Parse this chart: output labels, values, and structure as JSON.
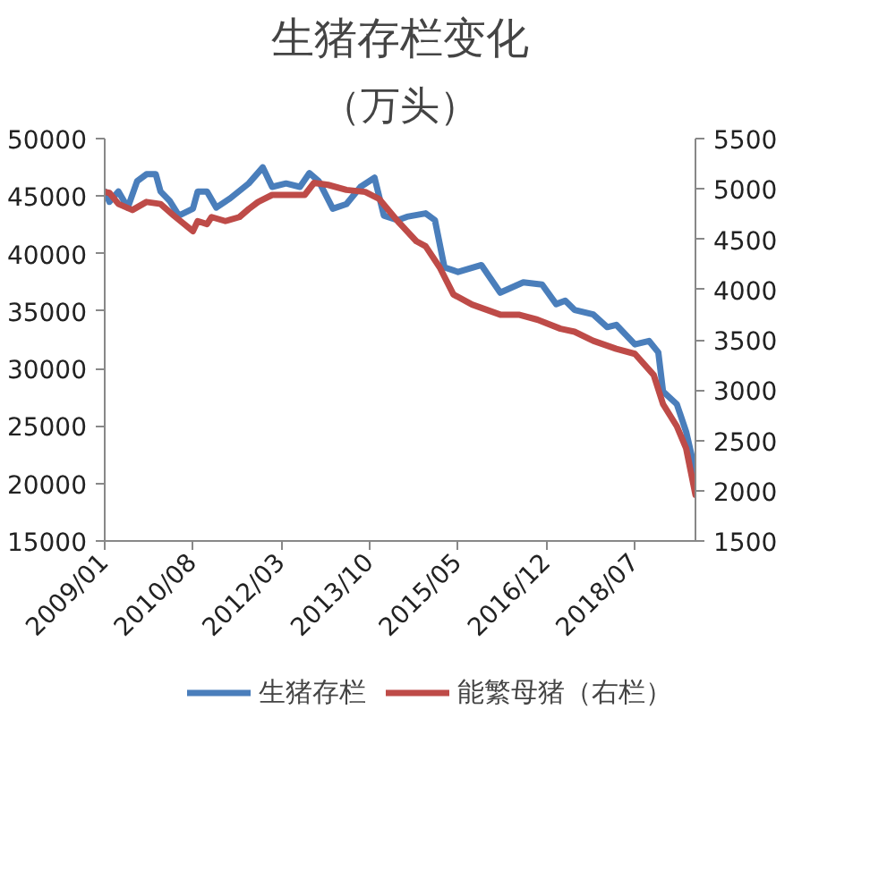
{
  "chart_data": {
    "type": "line",
    "title": "生猪存栏变化",
    "subtitle": "（万头）",
    "xlim": [
      "2009-01",
      "2019-08"
    ],
    "xticks": [
      {
        "value": "2009-01",
        "label": "2009/01"
      },
      {
        "value": "2010-08",
        "label": "2010/08"
      },
      {
        "value": "2012-03",
        "label": "2012/03"
      },
      {
        "value": "2013-10",
        "label": "2013/10"
      },
      {
        "value": "2015-05",
        "label": "2015/05"
      },
      {
        "value": "2016-12",
        "label": "2016/12"
      },
      {
        "value": "2018-07",
        "label": "2018/07"
      }
    ],
    "ylim": [
      15000,
      50000
    ],
    "yticks": [
      15000,
      20000,
      25000,
      30000,
      35000,
      40000,
      45000,
      50000
    ],
    "y2lim": [
      1500,
      5500
    ],
    "y2ticks": [
      1500,
      2000,
      2500,
      3000,
      3500,
      4000,
      4500,
      5000,
      5500
    ],
    "legend": "bottom",
    "line_style": "solid",
    "series": [
      {
        "name": "生猪存栏",
        "color": "#4a7ebb",
        "x": [
          "2009-01",
          "2009-02",
          "2009-04",
          "2009-06",
          "2009-08",
          "2009-10",
          "2009-12",
          "2010-01",
          "2010-03",
          "2010-05",
          "2010-08",
          "2010-09",
          "2010-11",
          "2011-01",
          "2011-04",
          "2011-08",
          "2011-11",
          "2012-01",
          "2012-04",
          "2012-07",
          "2012-09",
          "2012-11",
          "2013-02",
          "2013-05",
          "2013-08",
          "2013-11",
          "2014-01",
          "2014-04",
          "2014-06",
          "2014-10",
          "2014-12",
          "2015-02",
          "2015-05",
          "2015-10",
          "2016-02",
          "2016-07",
          "2016-11",
          "2017-02",
          "2017-04",
          "2017-06",
          "2017-10",
          "2018-01",
          "2018-03",
          "2018-07",
          "2018-10",
          "2018-12",
          "2019-01",
          "2019-04",
          "2019-06",
          "2019-08"
        ],
        "values": [
          45400,
          44500,
          45400,
          44000,
          46300,
          46900,
          46900,
          45400,
          44600,
          43300,
          43900,
          45400,
          45400,
          44000,
          44800,
          46100,
          47500,
          45800,
          46100,
          45800,
          47000,
          46300,
          43900,
          44300,
          45800,
          46600,
          43300,
          42900,
          43200,
          43500,
          42900,
          38800,
          38400,
          39000,
          36600,
          37500,
          37300,
          35600,
          35900,
          35100,
          34700,
          33600,
          33800,
          32100,
          32400,
          31400,
          28000,
          26900,
          24500,
          21000
        ]
      },
      {
        "name": "能繁母猪（右栏）",
        "color": "#be4b48",
        "axis": "y2",
        "x": [
          "2009-01",
          "2009-02",
          "2009-04",
          "2009-07",
          "2009-10",
          "2010-01",
          "2010-04",
          "2010-08",
          "2010-09",
          "2010-11",
          "2010-12",
          "2011-03",
          "2011-06",
          "2011-08",
          "2011-10",
          "2012-01",
          "2012-06",
          "2012-08",
          "2012-10",
          "2013-01",
          "2013-05",
          "2013-09",
          "2013-12",
          "2014-04",
          "2014-08",
          "2014-10",
          "2015-01",
          "2015-04",
          "2015-08",
          "2016-02",
          "2016-06",
          "2016-10",
          "2017-03",
          "2017-06",
          "2017-10",
          "2018-03",
          "2018-07",
          "2018-11",
          "2019-01",
          "2019-04",
          "2019-06",
          "2019-08"
        ],
        "values": [
          4970,
          4960,
          4850,
          4790,
          4870,
          4850,
          4730,
          4580,
          4680,
          4650,
          4720,
          4680,
          4720,
          4800,
          4870,
          4940,
          4940,
          4940,
          5060,
          5040,
          4990,
          4970,
          4900,
          4680,
          4480,
          4430,
          4220,
          3950,
          3850,
          3750,
          3750,
          3700,
          3610,
          3580,
          3490,
          3410,
          3360,
          3150,
          2860,
          2640,
          2420,
          1960
        ]
      }
    ]
  }
}
